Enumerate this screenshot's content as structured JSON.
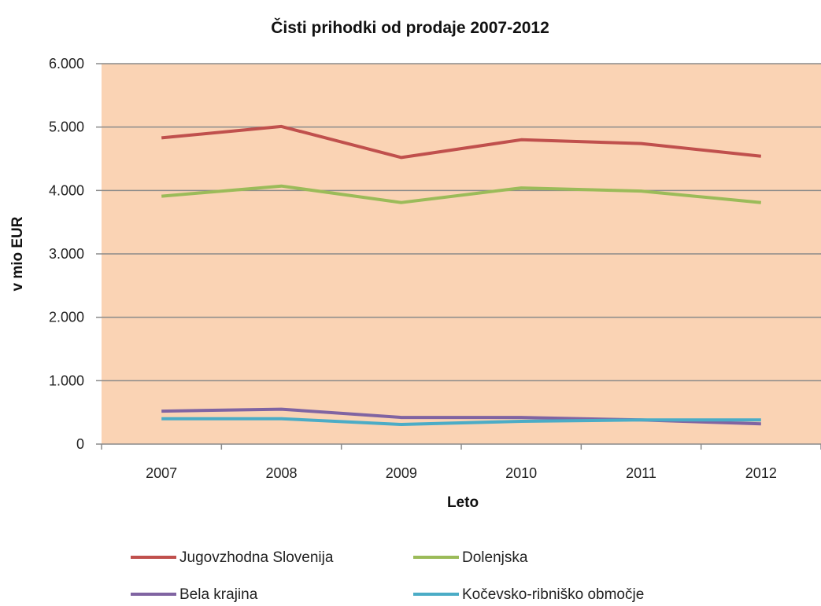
{
  "chart_data": {
    "type": "line",
    "title": "Čisti prihodki od prodaje 2007-2012",
    "xlabel": "Leto",
    "ylabel": "v mio EUR",
    "categories": [
      "2007",
      "2008",
      "2009",
      "2010",
      "2011",
      "2012"
    ],
    "ylim": [
      0,
      6000
    ],
    "yticks": [
      {
        "value": 0,
        "label": "0"
      },
      {
        "value": 1000,
        "label": "1.000"
      },
      {
        "value": 2000,
        "label": "2.000"
      },
      {
        "value": 3000,
        "label": "3.000"
      },
      {
        "value": 4000,
        "label": "4.000"
      },
      {
        "value": 5000,
        "label": "5.000"
      },
      {
        "value": 6000,
        "label": "6.000"
      }
    ],
    "grid": true,
    "plot_background": "#fad3b4",
    "legend_position": "bottom",
    "series": [
      {
        "name": "Jugovzhodna Slovenija",
        "color": "#c0504d",
        "values": [
          4830,
          5010,
          4520,
          4800,
          4740,
          4540
        ]
      },
      {
        "name": "Dolenjska",
        "color": "#9bbb59",
        "values": [
          3910,
          4070,
          3810,
          4040,
          3990,
          3810
        ]
      },
      {
        "name": "Bela krajina",
        "color": "#8064a2",
        "values": [
          520,
          550,
          420,
          420,
          380,
          320
        ]
      },
      {
        "name": "Kočevsko-ribniško območje",
        "color": "#4bacc6",
        "values": [
          400,
          400,
          310,
          360,
          380,
          380
        ]
      }
    ]
  }
}
